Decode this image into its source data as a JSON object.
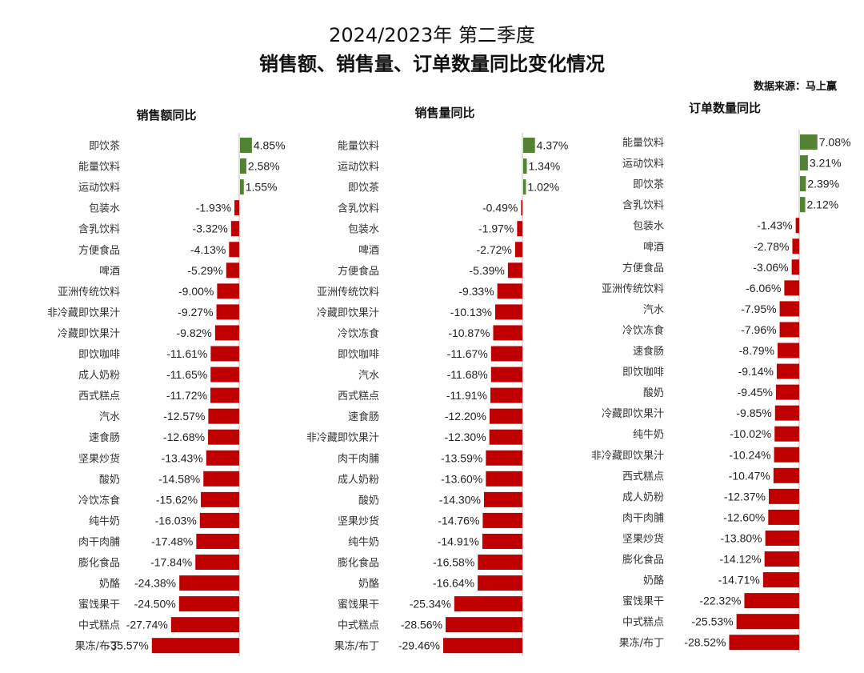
{
  "title_line1": "2024/2023年 第二季度",
  "title_line2": "销售额、销售量、订单数量同比变化情况",
  "source": "数据来源：马上赢",
  "colors": {
    "positive": "#548235",
    "negative": "#C00000",
    "axis": "#bfbfbf"
  },
  "chart_data": [
    {
      "type": "bar",
      "orientation": "horizontal",
      "title": "销售额同比",
      "categories": [
        "即饮茶",
        "能量饮料",
        "运动饮料",
        "包装水",
        "含乳饮料",
        "方便食品",
        "啤酒",
        "亚洲传统饮料",
        "非冷藏即饮果汁",
        "冷藏即饮果汁",
        "即饮咖啡",
        "成人奶粉",
        "西式糕点",
        "汽水",
        "速食肠",
        "坚果炒货",
        "酸奶",
        "冷饮冻食",
        "纯牛奶",
        "肉干肉脯",
        "膨化食品",
        "奶酪",
        "蜜饯果干",
        "中式糕点",
        "果冻/布丁"
      ],
      "values": [
        4.85,
        2.58,
        1.55,
        -1.93,
        -3.32,
        -4.13,
        -5.29,
        -9.0,
        -9.27,
        -9.82,
        -11.61,
        -11.65,
        -11.72,
        -12.57,
        -12.68,
        -13.43,
        -14.58,
        -15.62,
        -16.03,
        -17.48,
        -17.84,
        -24.38,
        -24.5,
        -27.74,
        -35.57
      ],
      "labels": [
        "4.85%",
        "2.58%",
        "1.55%",
        "-1.93%",
        "-3.32%",
        "-4.13%",
        "-5.29%",
        "-9.00%",
        "-9.27%",
        "-9.82%",
        "-11.61%",
        "-11.65%",
        "-11.72%",
        "-12.57%",
        "-12.68%",
        "-13.43%",
        "-14.58%",
        "-15.62%",
        "-16.03%",
        "-17.48%",
        "-17.84%",
        "-24.38%",
        "-24.50%",
        "-27.74%",
        "-35.57%"
      ]
    },
    {
      "type": "bar",
      "orientation": "horizontal",
      "title": "销售量同比",
      "categories": [
        "能量饮料",
        "运动饮料",
        "即饮茶",
        "含乳饮料",
        "包装水",
        "啤酒",
        "方便食品",
        "亚洲传统饮料",
        "冷藏即饮果汁",
        "冷饮冻食",
        "即饮咖啡",
        "汽水",
        "西式糕点",
        "速食肠",
        "非冷藏即饮果汁",
        "肉干肉脯",
        "成人奶粉",
        "酸奶",
        "坚果炒货",
        "纯牛奶",
        "膨化食品",
        "奶酪",
        "蜜饯果干",
        "中式糕点",
        "果冻/布丁"
      ],
      "values": [
        4.37,
        1.34,
        1.02,
        -0.49,
        -1.97,
        -2.72,
        -5.39,
        -9.33,
        -10.13,
        -10.87,
        -11.67,
        -11.68,
        -11.91,
        -12.2,
        -12.3,
        -13.59,
        -13.6,
        -14.3,
        -14.76,
        -14.91,
        -16.58,
        -16.64,
        -25.34,
        -28.56,
        -29.46
      ],
      "labels": [
        "4.37%",
        "1.34%",
        "1.02%",
        "-0.49%",
        "-1.97%",
        "-2.72%",
        "-5.39%",
        "-9.33%",
        "-10.13%",
        "-10.87%",
        "-11.67%",
        "-11.68%",
        "-11.91%",
        "-12.20%",
        "-12.30%",
        "-13.59%",
        "-13.60%",
        "-14.30%",
        "-14.76%",
        "-14.91%",
        "-16.58%",
        "-16.64%",
        "-25.34%",
        "-28.56%",
        "-29.46%"
      ]
    },
    {
      "type": "bar",
      "orientation": "horizontal",
      "title": "订单数量同比",
      "categories": [
        "能量饮料",
        "运动饮料",
        "即饮茶",
        "含乳饮料",
        "包装水",
        "啤酒",
        "方便食品",
        "亚洲传统饮料",
        "汽水",
        "冷饮冻食",
        "速食肠",
        "即饮咖啡",
        "酸奶",
        "冷藏即饮果汁",
        "纯牛奶",
        "非冷藏即饮果汁",
        "西式糕点",
        "成人奶粉",
        "肉干肉脯",
        "坚果炒货",
        "膨化食品",
        "奶酪",
        "蜜饯果干",
        "中式糕点",
        "果冻/布丁"
      ],
      "values": [
        7.08,
        3.21,
        2.39,
        2.12,
        -1.43,
        -2.78,
        -3.06,
        -6.06,
        -7.95,
        -7.96,
        -8.79,
        -9.14,
        -9.45,
        -9.85,
        -10.02,
        -10.24,
        -10.47,
        -12.37,
        -12.6,
        -13.8,
        -14.12,
        -14.71,
        -22.32,
        -25.53,
        -28.52
      ],
      "labels": [
        "7.08%",
        "3.21%",
        "2.39%",
        "2.12%",
        "-1.43%",
        "-2.78%",
        "-3.06%",
        "-6.06%",
        "-7.95%",
        "-7.96%",
        "-8.79%",
        "-9.14%",
        "-9.45%",
        "-9.85%",
        "-10.02%",
        "-10.24%",
        "-10.47%",
        "-12.37%",
        "-12.60%",
        "-13.80%",
        "-14.12%",
        "-14.71%",
        "-22.32%",
        "-25.53%",
        "-28.52%"
      ]
    }
  ]
}
